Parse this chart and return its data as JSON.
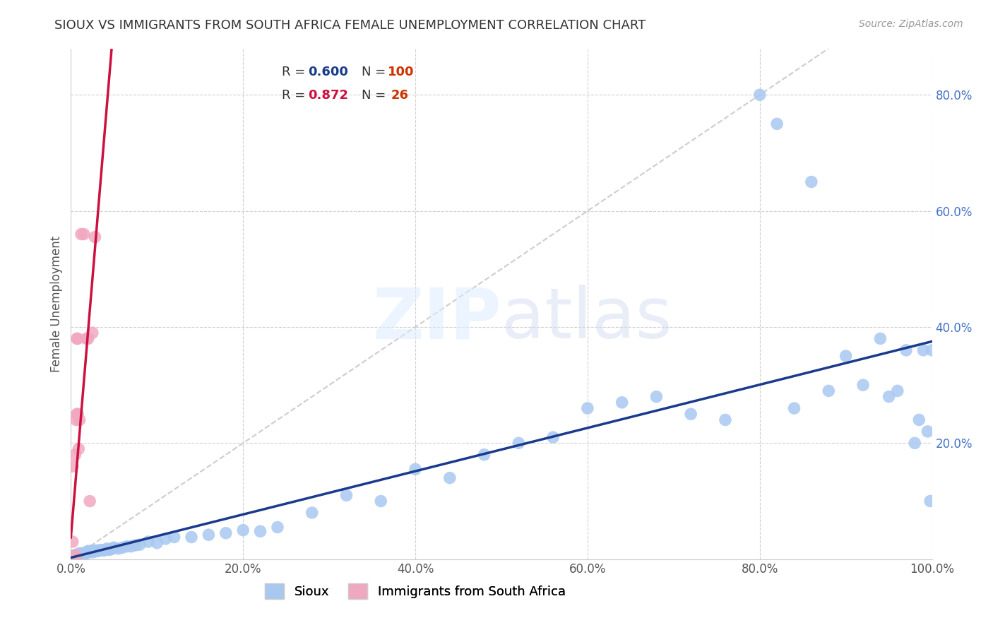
{
  "title": "SIOUX VS IMMIGRANTS FROM SOUTH AFRICA FEMALE UNEMPLOYMENT CORRELATION CHART",
  "source": "Source: ZipAtlas.com",
  "ylabel": "Female Unemployment",
  "xlim": [
    0,
    1.0
  ],
  "ylim": [
    0,
    0.88
  ],
  "xticks": [
    0.0,
    0.2,
    0.4,
    0.6,
    0.8,
    1.0
  ],
  "yticks": [
    0.0,
    0.2,
    0.4,
    0.6,
    0.8
  ],
  "xticklabels": [
    "0.0%",
    "20.0%",
    "40.0%",
    "60.0%",
    "80.0%",
    "100.0%"
  ],
  "yticklabels": [
    "",
    "20.0%",
    "40.0%",
    "60.0%",
    "80.0%"
  ],
  "legend_labels": [
    "Sioux",
    "Immigrants from South Africa"
  ],
  "sioux_R": 0.6,
  "sioux_N": 100,
  "sa_R": 0.872,
  "sa_N": 26,
  "sioux_color": "#a8c8f0",
  "sa_color": "#f0a8c0",
  "sioux_line_color": "#1a3a8c",
  "sa_line_color": "#cc1040",
  "ref_line_color": "#c8c8c8",
  "background_color": "#ffffff",
  "sioux_x": [
    0.003,
    0.003,
    0.003,
    0.003,
    0.004,
    0.004,
    0.004,
    0.005,
    0.005,
    0.005,
    0.005,
    0.006,
    0.006,
    0.006,
    0.007,
    0.007,
    0.007,
    0.008,
    0.008,
    0.009,
    0.009,
    0.01,
    0.01,
    0.01,
    0.01,
    0.01,
    0.012,
    0.012,
    0.013,
    0.013,
    0.014,
    0.015,
    0.015,
    0.016,
    0.017,
    0.018,
    0.018,
    0.019,
    0.02,
    0.02,
    0.022,
    0.024,
    0.025,
    0.026,
    0.028,
    0.03,
    0.032,
    0.035,
    0.038,
    0.04,
    0.042,
    0.045,
    0.048,
    0.05,
    0.055,
    0.06,
    0.065,
    0.07,
    0.075,
    0.08,
    0.09,
    0.1,
    0.11,
    0.12,
    0.14,
    0.16,
    0.18,
    0.2,
    0.22,
    0.24,
    0.28,
    0.32,
    0.36,
    0.4,
    0.44,
    0.48,
    0.52,
    0.56,
    0.6,
    0.64,
    0.68,
    0.72,
    0.76,
    0.8,
    0.82,
    0.84,
    0.86,
    0.88,
    0.9,
    0.92,
    0.94,
    0.95,
    0.96,
    0.97,
    0.98,
    0.985,
    0.99,
    0.995,
    0.998,
    1.0
  ],
  "sioux_y": [
    0.003,
    0.004,
    0.005,
    0.006,
    0.004,
    0.005,
    0.006,
    0.004,
    0.005,
    0.006,
    0.007,
    0.005,
    0.006,
    0.007,
    0.005,
    0.006,
    0.008,
    0.006,
    0.007,
    0.006,
    0.008,
    0.005,
    0.006,
    0.007,
    0.008,
    0.01,
    0.007,
    0.009,
    0.008,
    0.01,
    0.009,
    0.008,
    0.01,
    0.009,
    0.01,
    0.01,
    0.012,
    0.012,
    0.012,
    0.014,
    0.013,
    0.014,
    0.012,
    0.015,
    0.013,
    0.015,
    0.014,
    0.016,
    0.015,
    0.016,
    0.018,
    0.016,
    0.018,
    0.02,
    0.018,
    0.02,
    0.022,
    0.022,
    0.024,
    0.025,
    0.03,
    0.028,
    0.035,
    0.038,
    0.038,
    0.042,
    0.045,
    0.05,
    0.048,
    0.055,
    0.08,
    0.11,
    0.1,
    0.155,
    0.14,
    0.18,
    0.2,
    0.21,
    0.26,
    0.27,
    0.28,
    0.25,
    0.24,
    0.8,
    0.75,
    0.26,
    0.65,
    0.29,
    0.35,
    0.3,
    0.38,
    0.28,
    0.29,
    0.36,
    0.2,
    0.24,
    0.36,
    0.22,
    0.1,
    0.36
  ],
  "sa_x": [
    0.002,
    0.002,
    0.003,
    0.003,
    0.003,
    0.004,
    0.004,
    0.004,
    0.005,
    0.005,
    0.005,
    0.006,
    0.006,
    0.007,
    0.007,
    0.008,
    0.008,
    0.009,
    0.01,
    0.012,
    0.015,
    0.018,
    0.02,
    0.022,
    0.025,
    0.028
  ],
  "sa_y": [
    0.03,
    0.16,
    0.003,
    0.003,
    0.003,
    0.003,
    0.004,
    0.004,
    0.005,
    0.006,
    0.18,
    0.006,
    0.24,
    0.25,
    0.38,
    0.25,
    0.38,
    0.19,
    0.24,
    0.56,
    0.56,
    0.38,
    0.38,
    0.1,
    0.39,
    0.555
  ]
}
